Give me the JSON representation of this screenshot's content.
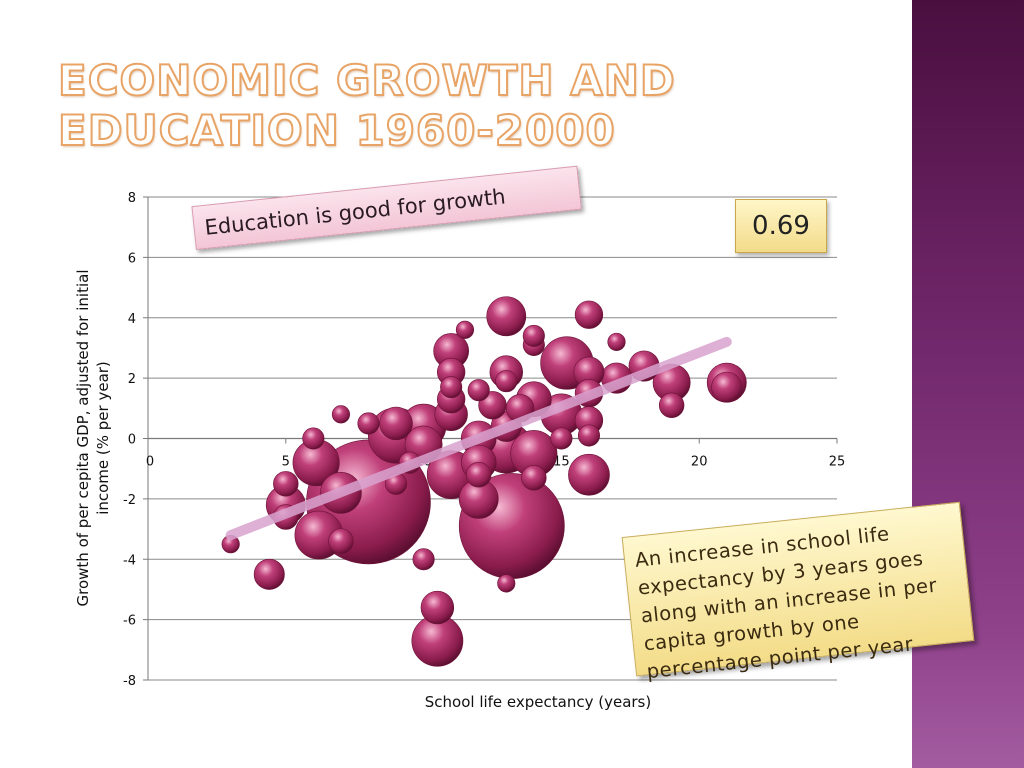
{
  "slide": {
    "title_line1": "Economic growth and",
    "title_line2": "education 1960-2000",
    "callout_pink": "Education is good for growth",
    "correlation": "0.69",
    "callout_yellow": "An increase in school life expectancy by 3 years goes along with an increase in per capita growth by one percentage point per year"
  },
  "colors": {
    "bubble": "#b0306a",
    "bubble_dark": "#6e1238",
    "bubble_light": "#f3a9c7",
    "trend": "#d9a3cf",
    "sidebar": "#6e2568",
    "title_stroke": "#e8a466"
  },
  "chart_data": {
    "type": "scatter",
    "xlabel": "School life expectancy (years)",
    "ylabel": "Growth of per cepita GDP, adjusted for initial income (% per year)",
    "xlim": [
      0,
      25
    ],
    "ylim": [
      -8,
      8
    ],
    "xticks": [
      0,
      5,
      10,
      15,
      20,
      25
    ],
    "yticks": [
      8,
      6,
      4,
      2,
      0,
      -2,
      -4,
      -6,
      -8
    ],
    "grid": "horizontal",
    "trend_line": {
      "x": [
        3,
        21
      ],
      "y": [
        -3.2,
        3.2
      ]
    },
    "points": [
      {
        "x": 8.0,
        "y": -2.1,
        "size": 100
      },
      {
        "x": 13.2,
        "y": -2.9,
        "size": 72
      },
      {
        "x": 15.2,
        "y": 2.5,
        "size": 18
      },
      {
        "x": 9.0,
        "y": 0.1,
        "size": 20
      },
      {
        "x": 11.0,
        "y": -1.2,
        "size": 15
      },
      {
        "x": 13.0,
        "y": -0.3,
        "size": 17
      },
      {
        "x": 10.5,
        "y": -6.7,
        "size": 17
      },
      {
        "x": 6.2,
        "y": -3.2,
        "size": 15
      },
      {
        "x": 6.1,
        "y": -0.8,
        "size": 14
      },
      {
        "x": 10.0,
        "y": 0.4,
        "size": 13
      },
      {
        "x": 14.0,
        "y": -0.5,
        "size": 14
      },
      {
        "x": 12.0,
        "y": -2.0,
        "size": 10
      },
      {
        "x": 7.0,
        "y": -1.8,
        "size": 11
      },
      {
        "x": 15.0,
        "y": 0.8,
        "size": 11
      },
      {
        "x": 16.0,
        "y": -1.2,
        "size": 11
      },
      {
        "x": 13.0,
        "y": 4.05,
        "size": 10
      },
      {
        "x": 19.0,
        "y": 1.85,
        "size": 9
      },
      {
        "x": 21.0,
        "y": 1.85,
        "size": 10
      },
      {
        "x": 5.0,
        "y": -2.2,
        "size": 10
      },
      {
        "x": 11.0,
        "y": 2.9,
        "size": 8
      },
      {
        "x": 14.0,
        "y": 1.3,
        "size": 8
      },
      {
        "x": 10.5,
        "y": -5.6,
        "size": 7
      },
      {
        "x": 4.4,
        "y": -4.5,
        "size": 6
      },
      {
        "x": 16.0,
        "y": 4.1,
        "size": 5
      },
      {
        "x": 18.0,
        "y": 2.4,
        "size": 6
      },
      {
        "x": 17.0,
        "y": 2.0,
        "size": 6
      },
      {
        "x": 13.0,
        "y": 2.2,
        "size": 7
      },
      {
        "x": 11.0,
        "y": 0.8,
        "size": 7
      },
      {
        "x": 12.0,
        "y": 0.0,
        "size": 8
      },
      {
        "x": 12.0,
        "y": -0.8,
        "size": 8
      },
      {
        "x": 10.0,
        "y": -0.2,
        "size": 9
      },
      {
        "x": 9.0,
        "y": 0.5,
        "size": 7
      },
      {
        "x": 11.0,
        "y": 1.3,
        "size": 5
      },
      {
        "x": 11.0,
        "y": 2.2,
        "size": 5
      },
      {
        "x": 12.5,
        "y": 1.1,
        "size": 5
      },
      {
        "x": 13.0,
        "y": 0.4,
        "size": 6
      },
      {
        "x": 13.5,
        "y": 1.0,
        "size": 5
      },
      {
        "x": 16.0,
        "y": 1.5,
        "size": 5
      },
      {
        "x": 16.0,
        "y": 0.6,
        "size": 5
      },
      {
        "x": 16.0,
        "y": 2.2,
        "size": 6
      },
      {
        "x": 19.0,
        "y": 1.1,
        "size": 4
      },
      {
        "x": 21.0,
        "y": 1.7,
        "size": 6
      },
      {
        "x": 14.0,
        "y": 3.1,
        "size": 3
      },
      {
        "x": 14.0,
        "y": 3.4,
        "size": 3
      },
      {
        "x": 11.0,
        "y": 1.7,
        "size": 3
      },
      {
        "x": 5.0,
        "y": -1.5,
        "size": 4
      },
      {
        "x": 5.0,
        "y": -2.6,
        "size": 4
      },
      {
        "x": 7.0,
        "y": -3.4,
        "size": 4
      },
      {
        "x": 10.0,
        "y": -4.0,
        "size": 3
      },
      {
        "x": 8.0,
        "y": 0.5,
        "size": 3
      },
      {
        "x": 9.0,
        "y": -1.5,
        "size": 3
      },
      {
        "x": 14.0,
        "y": -1.3,
        "size": 4
      },
      {
        "x": 15.0,
        "y": 0.0,
        "size": 3
      },
      {
        "x": 16.0,
        "y": 0.1,
        "size": 3
      },
      {
        "x": 12.0,
        "y": -1.2,
        "size": 4
      },
      {
        "x": 12.0,
        "y": 1.6,
        "size": 3
      },
      {
        "x": 11.5,
        "y": 3.6,
        "size": 2
      },
      {
        "x": 13.0,
        "y": 1.9,
        "size": 3
      },
      {
        "x": 6.0,
        "y": 0.0,
        "size": 3
      },
      {
        "x": 9.5,
        "y": -0.8,
        "size": 3
      },
      {
        "x": 3.0,
        "y": -3.5,
        "size": 2
      },
      {
        "x": 17.0,
        "y": 3.2,
        "size": 2
      },
      {
        "x": 7.0,
        "y": 0.8,
        "size": 2
      },
      {
        "x": 13.0,
        "y": -4.8,
        "size": 2
      }
    ]
  }
}
